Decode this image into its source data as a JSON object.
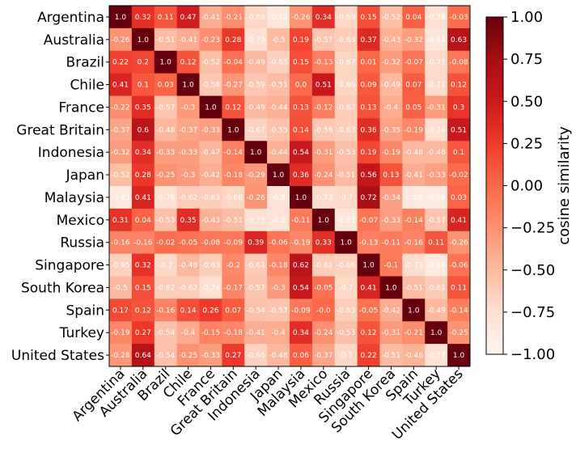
{
  "chart_data": {
    "type": "heatmap",
    "title": "",
    "labels": [
      "Argentina",
      "Australia",
      "Brazil",
      "Chile",
      "France",
      "Great Britain",
      "Indonesia",
      "Japan",
      "Malaysia",
      "Mexico",
      "Russia",
      "Singapore",
      "South Korea",
      "Spain",
      "Turkey",
      "United States"
    ],
    "values": [
      [
        1.0,
        0.32,
        0.11,
        0.47,
        -0.41,
        -0.21,
        -0.68,
        -0.82,
        -0.26,
        0.34,
        -0.69,
        0.15,
        -0.52,
        0.04,
        -0.76,
        -0.03
      ],
      [
        -0.26,
        1.0,
        -0.51,
        -0.41,
        -0.23,
        0.28,
        -0.75,
        -0.5,
        0.19,
        -0.57,
        -0.63,
        0.37,
        -0.43,
        -0.32,
        -0.81,
        0.63
      ],
      [
        0.22,
        0.2,
        1.0,
        0.12,
        -0.52,
        -0.04,
        -0.49,
        -0.65,
        0.15,
        -0.13,
        -0.67,
        0.01,
        -0.32,
        -0.07,
        -0.71,
        -0.08
      ],
      [
        0.41,
        0.1,
        0.03,
        1.0,
        -0.58,
        -0.27,
        -0.59,
        -0.51,
        0.0,
        0.51,
        -0.68,
        0.09,
        -0.49,
        0.07,
        -0.71,
        0.12
      ],
      [
        -0.22,
        0.35,
        -0.57,
        -0.3,
        1.0,
        0.12,
        -0.49,
        -0.44,
        0.13,
        -0.12,
        -0.62,
        0.13,
        -0.4,
        0.05,
        -0.31,
        0.3
      ],
      [
        -0.37,
        0.6,
        -0.48,
        -0.37,
        -0.33,
        1.0,
        -0.67,
        -0.55,
        0.14,
        -0.58,
        -0.63,
        0.36,
        -0.35,
        -0.19,
        -0.74,
        0.51
      ],
      [
        -0.32,
        0.34,
        -0.33,
        -0.33,
        -0.47,
        -0.14,
        1.0,
        -0.44,
        0.54,
        -0.31,
        -0.53,
        0.19,
        -0.19,
        -0.48,
        -0.48,
        0.1
      ],
      [
        -0.52,
        0.28,
        -0.25,
        -0.3,
        -0.42,
        -0.18,
        -0.29,
        1.0,
        0.36,
        -0.24,
        -0.51,
        0.56,
        0.13,
        -0.41,
        -0.33,
        -0.02
      ],
      [
        -0.83,
        0.41,
        -0.76,
        -0.62,
        -0.63,
        -0.68,
        -0.26,
        -0.8,
        1.0,
        -0.72,
        -0.7,
        0.72,
        -0.34,
        -0.86,
        -0.86,
        0.03
      ],
      [
        0.31,
        0.04,
        -0.53,
        0.35,
        -0.43,
        -0.51,
        -0.76,
        -0.8,
        -0.11,
        1.0,
        -0.81,
        -0.07,
        -0.33,
        -0.14,
        -0.57,
        0.41
      ],
      [
        -0.16,
        -0.16,
        -0.02,
        -0.05,
        -0.08,
        -0.09,
        0.39,
        -0.06,
        -0.19,
        0.33,
        1.0,
        -0.13,
        -0.11,
        -0.16,
        0.11,
        -0.26
      ],
      [
        -0.65,
        0.32,
        -0.7,
        -0.48,
        -0.63,
        -0.2,
        -0.61,
        -0.18,
        0.62,
        -0.62,
        -0.66,
        1.0,
        -0.1,
        -0.73,
        -0.86,
        -0.06
      ],
      [
        -0.5,
        0.15,
        -0.62,
        -0.62,
        -0.74,
        -0.17,
        -0.57,
        -0.3,
        0.54,
        -0.05,
        -0.7,
        0.41,
        1.0,
        -0.51,
        -0.61,
        0.11
      ],
      [
        0.17,
        0.12,
        -0.16,
        0.14,
        0.26,
        0.07,
        -0.54,
        -0.57,
        -0.09,
        -0.0,
        -0.63,
        -0.05,
        -0.42,
        1.0,
        -0.49,
        -0.14
      ],
      [
        -0.19,
        0.27,
        -0.54,
        -0.4,
        -0.15,
        -0.18,
        -0.41,
        -0.4,
        0.34,
        -0.24,
        -0.53,
        0.12,
        -0.31,
        -0.21,
        1.0,
        -0.25
      ],
      [
        -0.28,
        0.64,
        -0.54,
        -0.25,
        -0.33,
        0.27,
        -0.66,
        -0.48,
        0.06,
        -0.37,
        -0.7,
        0.22,
        -0.51,
        -0.46,
        -0.77,
        1.0
      ]
    ],
    "vmin": -1.0,
    "vmax": 1.0,
    "colormap": "Reds",
    "colorbar": {
      "label": "cosine similarity",
      "ticks": [
        "1.00",
        "0.75",
        "0.50",
        "0.25",
        "0.00",
        "−0.25",
        "−0.50",
        "−0.75",
        "−1.00"
      ],
      "tick_values": [
        1.0,
        0.75,
        0.5,
        0.25,
        0.0,
        -0.25,
        -0.5,
        -0.75,
        -1.0
      ]
    },
    "grid": false,
    "legend": "right"
  }
}
